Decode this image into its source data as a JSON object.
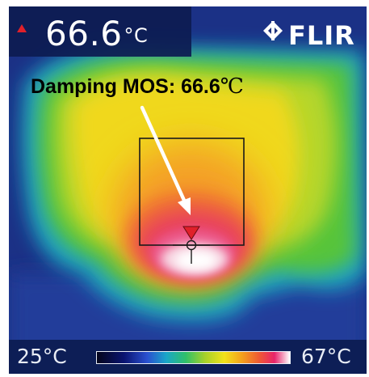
{
  "camera": {
    "readout_value": "66.6",
    "readout_unit": "°C",
    "brand": "FLIR"
  },
  "annotation": {
    "label": "Damping MOS: 66.6",
    "unit": "℃"
  },
  "scale": {
    "min_label": "25°C",
    "max_label": "67°C"
  },
  "colors": {
    "background": "#1a2e7a",
    "overlay_bar": "#0d1c52",
    "hotspot": "#ffffff",
    "spot_marker": "#e0202a",
    "arrow": "#ffffff"
  },
  "icons": {
    "alarm": "warning-triangle-icon",
    "brand": "flir-logo-icon",
    "spot": "crosshair-spot-icon"
  }
}
